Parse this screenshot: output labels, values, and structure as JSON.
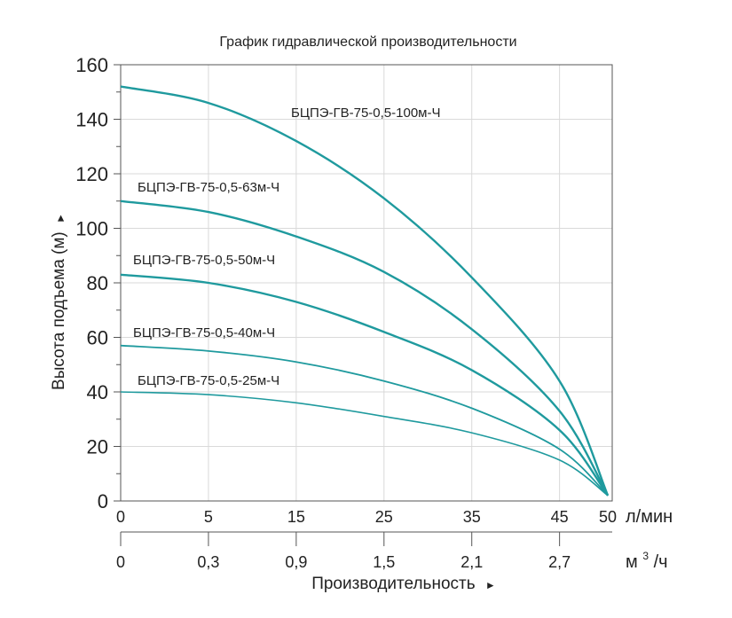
{
  "chart_data": {
    "type": "line",
    "title": "График гидравлической производительности",
    "ylabel": "Высота подъема (м)",
    "ylabel_arrow": "►",
    "xlabel": "Производительность",
    "xlabel_arrow": "►",
    "x_unit": "л/мин",
    "x2_unit": "м³/ч",
    "x2_unit_base": "м",
    "x2_unit_exp": "3",
    "x2_unit_tail": "/ч",
    "ylim": [
      0,
      160
    ],
    "xlim": [
      0,
      56
    ],
    "grid": true,
    "colors": {
      "curve": "#1f9a9e",
      "grid": "#d9d9d9",
      "axis": "#555555"
    },
    "y_ticks": [
      0,
      20,
      40,
      60,
      80,
      100,
      120,
      140,
      160
    ],
    "y_tick_labels": [
      "0",
      "20",
      "40",
      "60",
      "80",
      "100",
      "120",
      "140",
      "160"
    ],
    "x_ticks": [
      0,
      10,
      20,
      30,
      40,
      50
    ],
    "x_tick_labels": [
      "0",
      "5",
      "15",
      "25",
      "35",
      "45",
      "50"
    ],
    "x_tick_label_positions": [
      0,
      10,
      20,
      30,
      40,
      50,
      55.5
    ],
    "x2_tick_labels": [
      "0",
      "0,3",
      "0,9",
      "1,5",
      "2,1",
      "2,7"
    ],
    "x2_tick_positions": [
      0,
      10,
      20,
      30,
      40,
      50
    ],
    "series": [
      {
        "name": "БЦПЭ-ГВ-75-0,5-100м-Ч",
        "x": [
          0,
          10,
          20,
          30,
          40,
          50,
          55.5
        ],
        "y": [
          152,
          146,
          132,
          111,
          82,
          44,
          2
        ]
      },
      {
        "name": "БЦПЭ-ГВ-75-0,5-63м-Ч",
        "x": [
          0,
          10,
          20,
          30,
          40,
          50,
          55.5
        ],
        "y": [
          110,
          106,
          97,
          84,
          63,
          33,
          2
        ]
      },
      {
        "name": "БЦПЭ-ГВ-75-0,5-50м-Ч",
        "x": [
          0,
          10,
          20,
          30,
          40,
          50,
          55.5
        ],
        "y": [
          83,
          80,
          73,
          62,
          48,
          26,
          2
        ]
      },
      {
        "name": "БЦПЭ-ГВ-75-0,5-40м-Ч",
        "x": [
          0,
          10,
          20,
          30,
          40,
          50,
          55.5
        ],
        "y": [
          57,
          55,
          51,
          44,
          34,
          19,
          2
        ]
      },
      {
        "name": "БЦПЭ-ГВ-75-0,5-25м-Ч",
        "x": [
          0,
          10,
          20,
          30,
          40,
          50,
          55.5
        ],
        "y": [
          40,
          39,
          36,
          31,
          25,
          15,
          2
        ]
      }
    ]
  }
}
